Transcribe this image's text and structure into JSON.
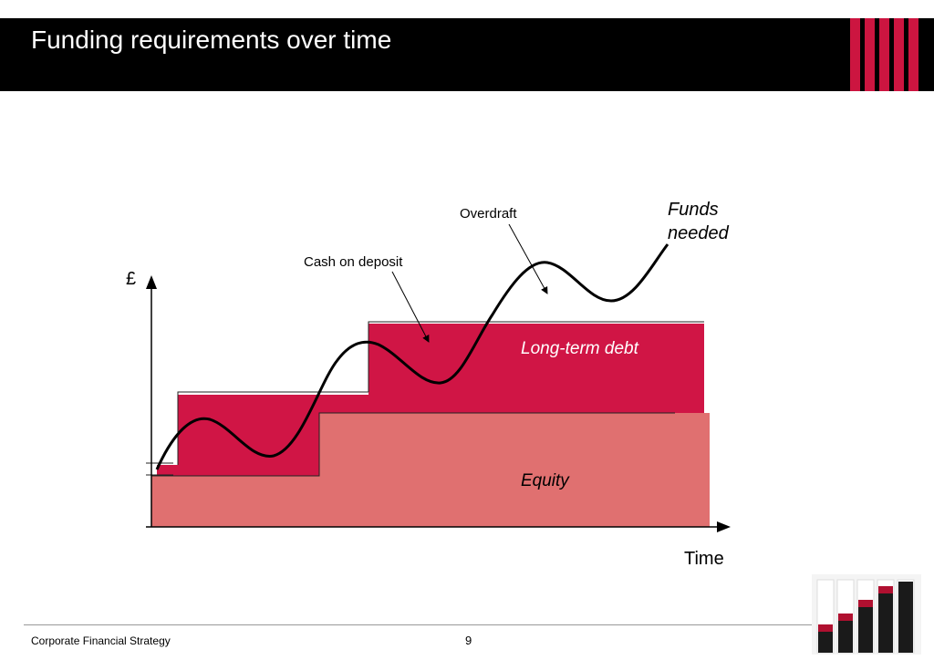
{
  "slide": {
    "title": "Funding requirements over time"
  },
  "diagram": {
    "y_axis_label": "£",
    "x_axis_label": "Time",
    "funds_needed_label_line1": "Funds",
    "funds_needed_label_line2": "needed",
    "overdraft_label": "Overdraft",
    "cash_on_deposit_label": "Cash on deposit",
    "long_term_debt_label": "Long-term debt",
    "equity_label": "Equity",
    "colors": {
      "debt": "#d01545",
      "equity": "#e07070",
      "header": "#000000",
      "stripes": "#cc1540"
    }
  },
  "footer": {
    "text": "Corporate Financial Strategy",
    "page_number": "9"
  },
  "logo": {
    "icon": "stacked-stones-jars-image"
  }
}
